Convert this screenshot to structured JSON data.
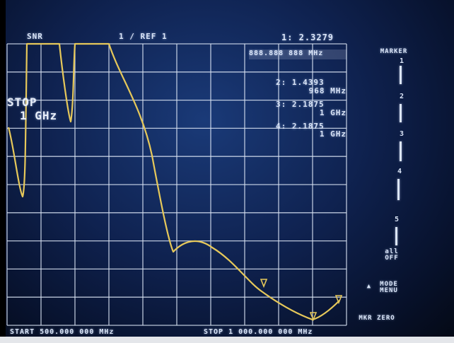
{
  "header": {
    "channel_label": "SNR",
    "trace_label": "1  /  REF 1"
  },
  "overlay": {
    "stop_line1": "STOP",
    "stop_line2": "1 GHz"
  },
  "markers": {
    "m1_value": "1: 2.3279",
    "m1_freq": "888.888 888 MHz",
    "m2_value": "2: 1.4393",
    "m2_freq": "968 MHz",
    "m3_value": "3: 2.1875",
    "m3_freq": "1 GHz",
    "m4_value": "4: 2.1875",
    "m4_freq": "1 GHz"
  },
  "softkeys": {
    "marker_title": "MARKER",
    "marker_1": "1",
    "marker_2": "2",
    "marker_3": "3",
    "marker_4": "4",
    "marker_5": "5",
    "all_off_1": "all",
    "all_off_2": "OFF",
    "mode_menu_1": "MODE",
    "mode_menu_2": "MENU",
    "mkr_zero": "MKR ZERO"
  },
  "footer": {
    "start": "START  500.000 000 MHz",
    "stop": "STOP 1 000.000 000 MHz"
  },
  "colors": {
    "trace": "#e6c85a",
    "grid": "#d8e2f2",
    "background": "#0f2250"
  }
}
